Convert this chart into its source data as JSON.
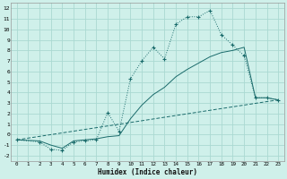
{
  "xlabel": "Humidex (Indice chaleur)",
  "bg_color": "#cff0ea",
  "grid_color": "#aad9d2",
  "line_color": "#1a6b6b",
  "xlim": [
    -0.5,
    23.5
  ],
  "ylim": [
    -2.5,
    12.5
  ],
  "xticks": [
    0,
    1,
    2,
    3,
    4,
    5,
    6,
    7,
    8,
    9,
    10,
    11,
    12,
    13,
    14,
    15,
    16,
    17,
    18,
    19,
    20,
    21,
    22,
    23
  ],
  "yticks": [
    -2,
    -1,
    0,
    1,
    2,
    3,
    4,
    5,
    6,
    7,
    8,
    9,
    10,
    11,
    12
  ],
  "series1_x": [
    0,
    2,
    3,
    4,
    5,
    6,
    7,
    8,
    9,
    10,
    11,
    12,
    13,
    14,
    15,
    16,
    17,
    18,
    19,
    20,
    21,
    22,
    23
  ],
  "series1_y": [
    -0.5,
    -0.7,
    -1.4,
    -1.5,
    -0.7,
    -0.6,
    -0.5,
    2.1,
    0.3,
    5.3,
    7.0,
    8.3,
    7.2,
    10.5,
    11.2,
    11.2,
    11.8,
    9.5,
    8.5,
    7.5,
    3.5,
    3.5,
    3.3
  ],
  "series2_x": [
    0,
    2,
    3,
    4,
    5,
    6,
    7,
    8,
    9,
    10,
    11,
    12,
    13,
    14,
    15,
    16,
    17,
    18,
    19,
    20,
    21,
    22,
    23
  ],
  "series2_y": [
    -0.5,
    -0.6,
    -1.0,
    -1.3,
    -0.6,
    -0.5,
    -0.4,
    -0.2,
    -0.1,
    1.5,
    2.8,
    3.8,
    4.5,
    5.5,
    6.2,
    6.8,
    7.4,
    7.8,
    8.0,
    8.3,
    3.5,
    3.5,
    3.3
  ],
  "series3_x": [
    0,
    23
  ],
  "series3_y": [
    -0.5,
    3.3
  ]
}
